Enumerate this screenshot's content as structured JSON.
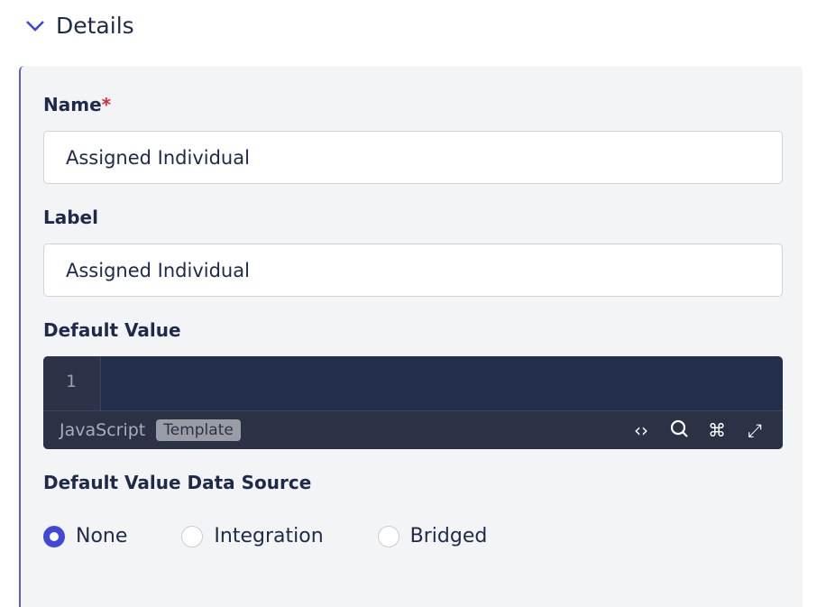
{
  "section": {
    "title": "Details",
    "icon": "chevron-down-icon"
  },
  "fields": {
    "name": {
      "label": "Name",
      "required_mark": "*",
      "value": "Assigned Individual"
    },
    "label": {
      "label": "Label",
      "value": "Assigned Individual"
    },
    "default_value": {
      "label": "Default Value",
      "line_number": "1",
      "language": "JavaScript",
      "mode_badge": "Template",
      "tools": [
        "code-icon",
        "search-icon",
        "command-icon",
        "expand-icon"
      ]
    },
    "data_source": {
      "label": "Default Value Data Source",
      "options": [
        {
          "label": "None",
          "selected": true
        },
        {
          "label": "Integration",
          "selected": false
        },
        {
          "label": "Bridged",
          "selected": false
        }
      ]
    }
  },
  "colors": {
    "accent": "#3f48d8",
    "required": "#e0283c",
    "editor_bg": "#242f4e"
  }
}
